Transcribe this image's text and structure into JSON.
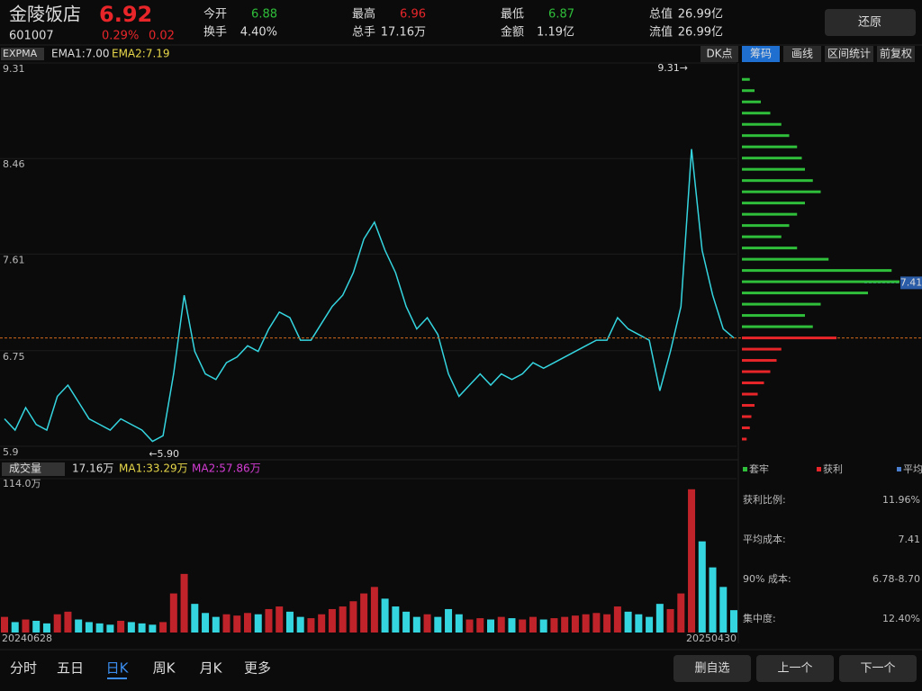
{
  "header": {
    "name": "金陵饭店",
    "price": 6.92,
    "code": "601007",
    "change_pct": "0.29%",
    "change": "0.02",
    "stats": [
      {
        "label": "今开",
        "value": "6.88"
      },
      {
        "label": "最高",
        "value": "6.96"
      },
      {
        "label": "最低",
        "value": "6.87"
      },
      {
        "label": "总值",
        "value": "26.99亿"
      },
      {
        "label": "换手",
        "value": "4.40%"
      },
      {
        "label": "总手",
        "value": "17.16万"
      },
      {
        "label": "金额",
        "value": "1.19亿"
      },
      {
        "label": "流值",
        "value": "26.99亿"
      }
    ],
    "button": "还原"
  },
  "toolbar": {
    "indicator": "EXPMA",
    "ema1": "EMA1:7.00",
    "ema2": "EMA2:7.19",
    "buttons": [
      "DK点",
      "筹码",
      "画线",
      "区间统计",
      "前复权"
    ]
  },
  "chart_data": [
    {
      "type": "line",
      "ylim": [
        5.9,
        9.31
      ],
      "yticks": [
        9.31,
        8.46,
        7.61,
        6.75,
        5.9
      ],
      "color": "#35d5e0",
      "high_label": "9.31→",
      "low_label": "←5.90",
      "avg_marker": 7.41,
      "values": [
        6.2,
        6.1,
        6.3,
        6.15,
        6.1,
        6.4,
        6.5,
        6.35,
        6.2,
        6.15,
        6.1,
        6.2,
        6.15,
        6.1,
        6.0,
        6.05,
        6.6,
        7.3,
        6.8,
        6.6,
        6.55,
        6.7,
        6.75,
        6.85,
        6.8,
        7.0,
        7.15,
        7.1,
        6.9,
        6.9,
        7.05,
        7.2,
        7.3,
        7.5,
        7.8,
        7.95,
        7.7,
        7.5,
        7.2,
        7.0,
        7.1,
        6.95,
        6.6,
        6.4,
        6.5,
        6.6,
        6.5,
        6.6,
        6.55,
        6.6,
        6.7,
        6.65,
        6.7,
        6.75,
        6.8,
        6.85,
        6.9,
        6.9,
        7.1,
        7.0,
        6.95,
        6.9,
        6.45,
        6.8,
        7.2,
        8.6,
        7.7,
        7.3,
        7.0,
        6.92
      ]
    },
    {
      "type": "bar",
      "title": "成交量",
      "current": "17.16万",
      "ma1": "MA1:33.29万",
      "ma2": "MA2:57.86万",
      "ylim": [
        0,
        114
      ],
      "yticks": [
        {
          "value": 114,
          "label": "114.0万"
        }
      ],
      "start_date": "20240628",
      "end_date": "20250430",
      "values": [
        12,
        8,
        10,
        9,
        7,
        14,
        16,
        10,
        8,
        7,
        6,
        9,
        8,
        7,
        6,
        8,
        30,
        45,
        22,
        15,
        12,
        14,
        13,
        15,
        14,
        18,
        20,
        16,
        12,
        11,
        14,
        18,
        20,
        24,
        30,
        35,
        26,
        20,
        16,
        12,
        14,
        12,
        18,
        14,
        10,
        11,
        10,
        12,
        11,
        10,
        12,
        10,
        11,
        12,
        13,
        14,
        15,
        14,
        20,
        16,
        14,
        12,
        22,
        18,
        30,
        110,
        70,
        50,
        35,
        17.16
      ]
    },
    {
      "type": "hbar",
      "xlim": [
        0,
        100
      ],
      "y": [
        9.2,
        9.1,
        9.0,
        8.9,
        8.8,
        8.7,
        8.6,
        8.5,
        8.4,
        8.3,
        8.2,
        8.1,
        8.0,
        7.9,
        7.8,
        7.7,
        7.6,
        7.5,
        7.4,
        7.3,
        7.2,
        7.1,
        7.0,
        6.9,
        6.8,
        6.7,
        6.6,
        6.5,
        6.4,
        6.3,
        6.2,
        6.1,
        6.0
      ],
      "values": [
        5,
        8,
        12,
        18,
        25,
        30,
        35,
        38,
        40,
        45,
        50,
        40,
        35,
        30,
        25,
        35,
        55,
        95,
        100,
        80,
        50,
        40,
        45,
        60,
        25,
        22,
        18,
        14,
        10,
        8,
        6,
        5,
        3
      ]
    }
  ],
  "chips": {
    "legend": [
      "套牢",
      "获利",
      "平均"
    ],
    "stats": [
      {
        "label": "获利比例:",
        "value": "11.96%"
      },
      {
        "label": "平均成本:",
        "value": "7.41"
      },
      {
        "label": "90% 成本:",
        "value": "6.78-8.70"
      },
      {
        "label": "集中度:",
        "value": "12.40%"
      }
    ]
  },
  "footer": {
    "tabs": [
      "分时",
      "五日",
      "日K",
      "周K",
      "月K",
      "更多"
    ],
    "buttons": [
      "删自选",
      "上一个",
      "下一个"
    ]
  }
}
